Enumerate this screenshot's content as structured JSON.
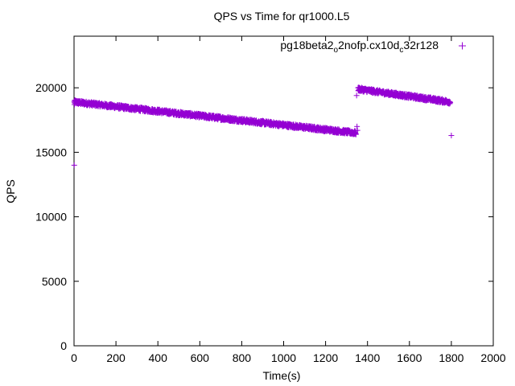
{
  "chart_data": {
    "type": "scatter",
    "title": "QPS vs Time for qr1000.L5",
    "xlabel": "Time(s)",
    "ylabel": "QPS",
    "xlim": [
      0,
      2000
    ],
    "ylim": [
      0,
      24000
    ],
    "xticks": [
      0,
      200,
      400,
      600,
      800,
      1000,
      1200,
      1400,
      1600,
      1800,
      2000
    ],
    "yticks": [
      0,
      5000,
      10000,
      15000,
      20000
    ],
    "grid": false,
    "legend_position": "top-right",
    "marker": "plus",
    "color": "#9400d3",
    "series": [
      {
        "name": "pg18beta2_o2nofp.cx10d_c32r128",
        "name_parts": {
          "a": "pg18beta2",
          "sub1": "o",
          "b": "2nofp.cx10d",
          "sub2": "c",
          "c": "32r128"
        },
        "segments": [
          {
            "x_start": 1,
            "x_end": 1345,
            "y_start": 18900,
            "y_end": 16500,
            "jitter": 150
          },
          {
            "x_start": 1355,
            "x_end": 1795,
            "y_start": 19900,
            "y_end": 18900,
            "jitter": 150
          }
        ],
        "points": [
          {
            "x": 1,
            "y": 14000
          },
          {
            "x": 2,
            "y": 18700
          },
          {
            "x": 1348,
            "y": 19400
          },
          {
            "x": 1350,
            "y": 17000
          },
          {
            "x": 1352,
            "y": 16700
          },
          {
            "x": 1800,
            "y": 16300
          }
        ]
      }
    ]
  }
}
